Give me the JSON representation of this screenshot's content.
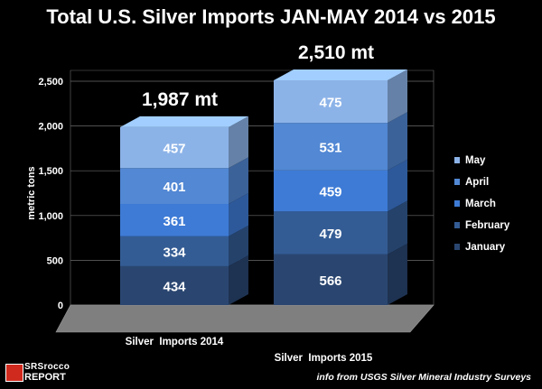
{
  "chart_data": {
    "type": "bar",
    "stacked": true,
    "three_d": true,
    "title": "Total U.S. Silver Imports JAN-MAY 2014 vs 2015",
    "ylabel": "metric tons",
    "xlabel": "",
    "ylim": [
      0,
      2500
    ],
    "yticks": [
      0,
      500,
      1000,
      1500,
      2000,
      2500
    ],
    "ytick_labels": [
      "0",
      "500",
      "1,000",
      "1,500",
      "2,000",
      "2,500"
    ],
    "grid": true,
    "legend_position": "right",
    "categories": [
      "Silver  Imports 2014",
      "Silver  Imports 2015"
    ],
    "totals": [
      1987,
      2510
    ],
    "total_labels": [
      "1,987 mt",
      "2,510 mt"
    ],
    "series": [
      {
        "name": "January",
        "values": [
          434,
          566
        ],
        "color": "#2a4670"
      },
      {
        "name": "February",
        "values": [
          334,
          479
        ],
        "color": "#345c94"
      },
      {
        "name": "March",
        "values": [
          361,
          459
        ],
        "color": "#3e7bd6"
      },
      {
        "name": "April",
        "values": [
          401,
          531
        ],
        "color": "#5288d4"
      },
      {
        "name": "May",
        "values": [
          457,
          475
        ],
        "color": "#8cb3e8"
      }
    ],
    "value_labels": [
      [
        "434",
        "334",
        "361",
        "401",
        "457"
      ],
      [
        "566",
        "479",
        "459",
        "531",
        "475"
      ]
    ]
  },
  "logo": {
    "line1": "SRSrocco",
    "line2": "REPORT"
  },
  "source_note": "info from USGS Silver Mineral Industry Surveys"
}
